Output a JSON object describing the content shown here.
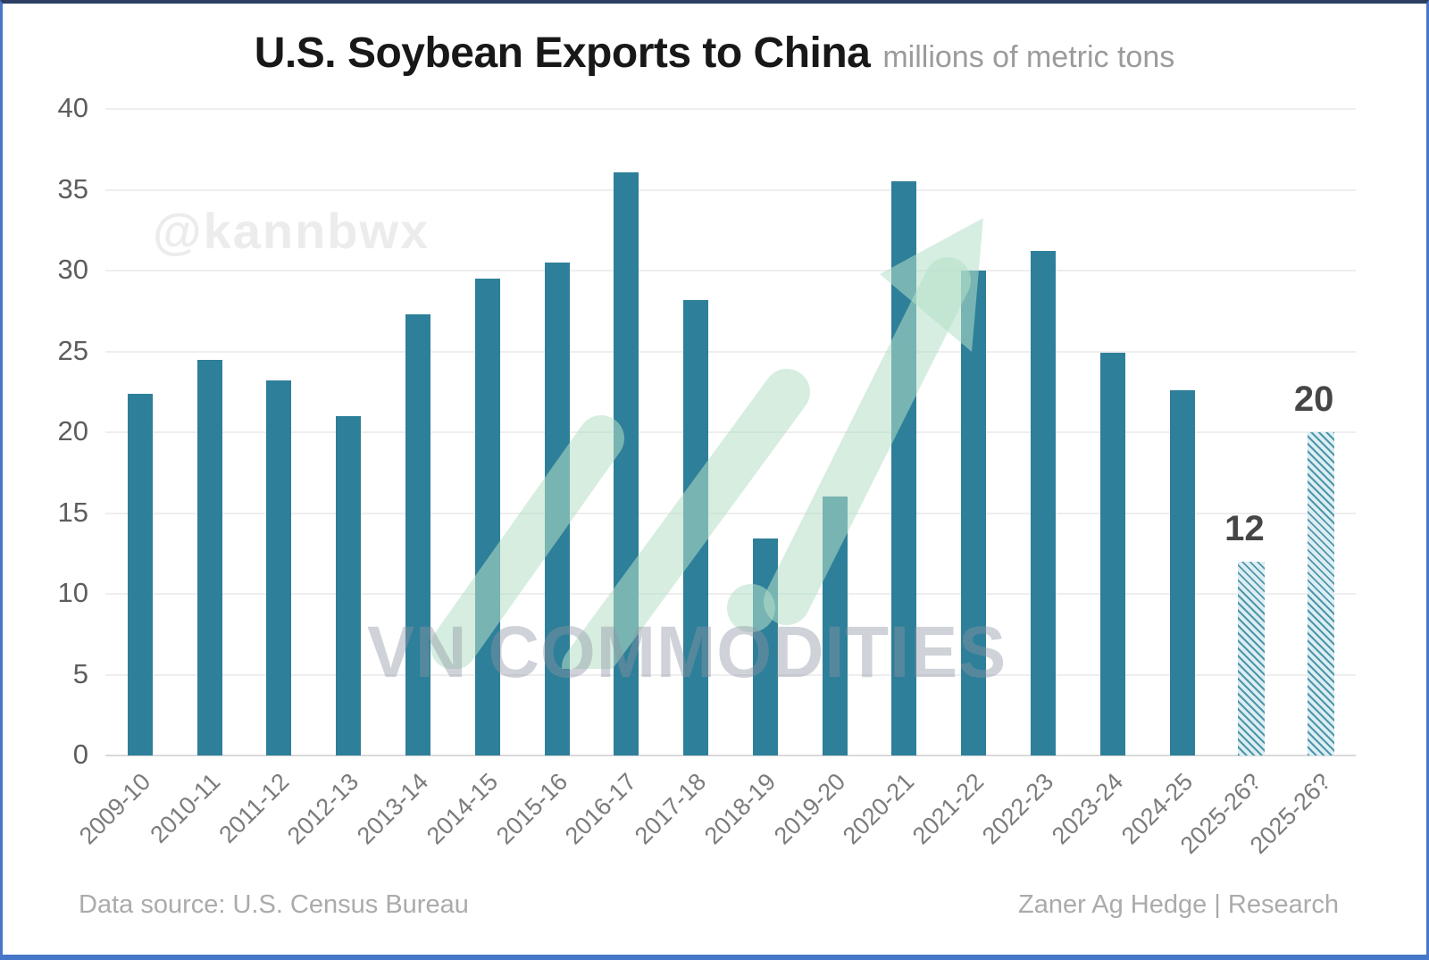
{
  "header": {
    "title": "U.S. Soybean Exports to China",
    "subtitle": "millions of metric tons"
  },
  "watermarks": {
    "handle": "@kannbwx",
    "brand": "VN COMMODITIES"
  },
  "footer": {
    "source": "Data source: U.S. Census Bureau",
    "credit": "Zaner Ag Hedge | Research"
  },
  "colors": {
    "bar": "#2e7f99",
    "forecast_hatch_stripe": "#4e96ac",
    "forecast_hatch_background": "#ddeef3",
    "gridline": "#eeeeee",
    "baseline": "#d9d9d9",
    "axis_text": "#5d5d5d",
    "xtick_text": "#7b7b7b",
    "title_text": "#181818",
    "subtitle_text": "#9b9b9b",
    "footer_text": "#ababab",
    "frame_border": "#4677c8",
    "trend_arrow_green": "#b5e0c8",
    "annotation_text": "#464646"
  },
  "chart_data": {
    "type": "bar",
    "title": "U.S. Soybean Exports to China",
    "units": "millions of metric tons",
    "categories": [
      "2009-10",
      "2010-11",
      "2011-12",
      "2012-13",
      "2013-14",
      "2014-15",
      "2015-16",
      "2016-17",
      "2017-18",
      "2018-19",
      "2019-20",
      "2020-21",
      "2021-22",
      "2022-23",
      "2023-24",
      "2024-25",
      "2025-26?",
      "2025-26?"
    ],
    "values": [
      22.4,
      24.5,
      23.2,
      21.0,
      27.3,
      29.5,
      30.5,
      36.1,
      28.2,
      13.4,
      16.0,
      35.5,
      30.0,
      31.2,
      24.9,
      22.6,
      12,
      20
    ],
    "forecast": [
      false,
      false,
      false,
      false,
      false,
      false,
      false,
      false,
      false,
      false,
      false,
      false,
      false,
      false,
      false,
      false,
      true,
      true
    ],
    "annotations": [
      {
        "index": 16,
        "text": "12"
      },
      {
        "index": 17,
        "text": "20"
      }
    ],
    "xlabel": "",
    "ylabel": "",
    "ylim": [
      0,
      40
    ],
    "yticks": [
      0,
      5,
      10,
      15,
      20,
      25,
      30,
      35,
      40
    ],
    "grid": "horizontal",
    "legend": "none"
  }
}
